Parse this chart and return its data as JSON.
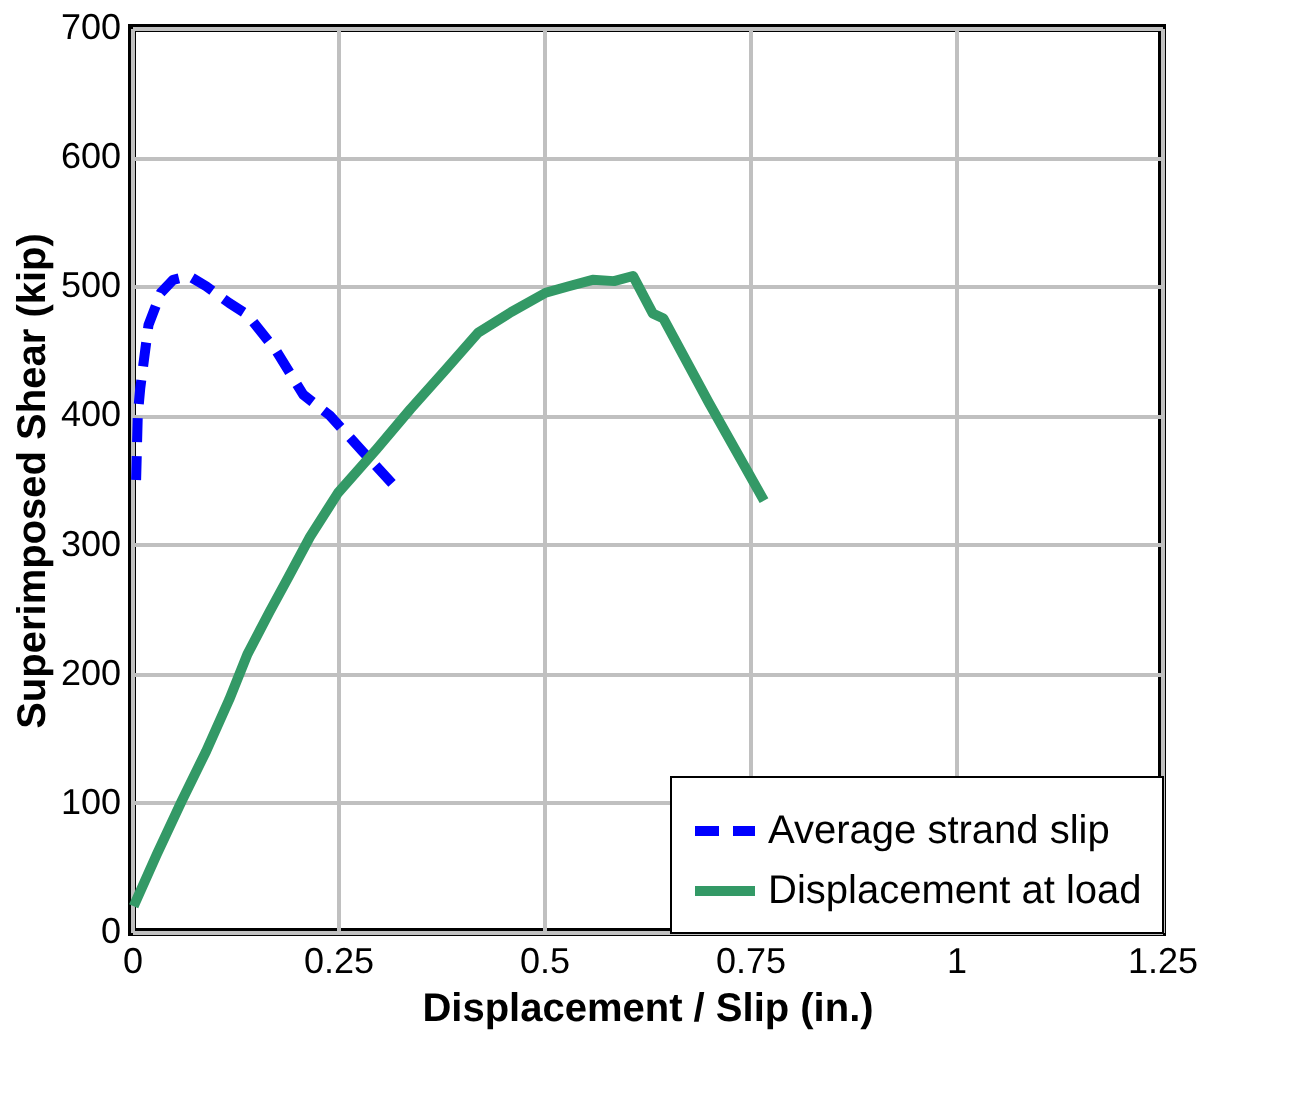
{
  "chart_data": {
    "type": "line",
    "xlabel": "Displacement / Slip (in.)",
    "ylabel": "Superimposed Shear (kip)",
    "xlim": [
      0,
      1.25
    ],
    "ylim": [
      0,
      700
    ],
    "xticks": [
      0,
      0.25,
      0.5,
      0.75,
      1,
      1.25
    ],
    "yticks": [
      0,
      100,
      200,
      300,
      400,
      500,
      600,
      700
    ],
    "grid": true,
    "legend": "bottom right",
    "marker": "none",
    "series": [
      {
        "name": "Average strand slip",
        "color": "#0000ff",
        "line_style": "dashed",
        "x": [
          0.005,
          0.007,
          0.01,
          0.02,
          0.035,
          0.05,
          0.069,
          0.09,
          0.118,
          0.14,
          0.175,
          0.208,
          0.24,
          0.28,
          0.319
        ],
        "values": [
          350,
          400,
          421,
          470,
          495,
          505,
          508,
          500,
          487,
          478,
          450,
          416,
          400,
          372,
          345
        ]
      },
      {
        "name": "Displacement at load",
        "color": "#339966",
        "line_style": "solid",
        "x": [
          0.002,
          0.03,
          0.06,
          0.09,
          0.118,
          0.14,
          0.167,
          0.19,
          0.216,
          0.25,
          0.297,
          0.338,
          0.38,
          0.42,
          0.46,
          0.502,
          0.53,
          0.559,
          0.585,
          0.608,
          0.632,
          0.645,
          0.7,
          0.767
        ],
        "values": [
          20,
          60,
          101,
          140,
          180,
          215,
          248,
          275,
          306,
          340,
          374,
          405,
          435,
          464,
          480,
          495,
          500,
          505,
          504,
          508,
          479,
          475,
          410,
          334
        ]
      }
    ]
  }
}
